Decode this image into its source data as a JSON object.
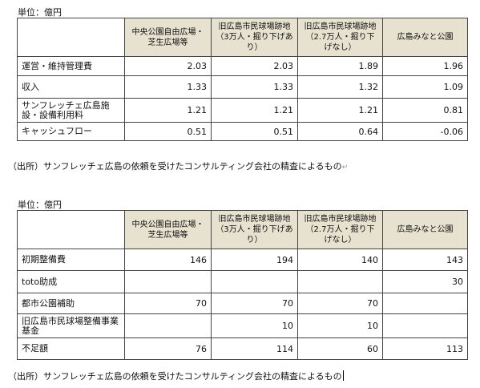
{
  "table1": {
    "unit": "単位：億円",
    "headers": [
      "中央公園自由広場・芝生広場等",
      "旧広島市民球場跡地（3万人・掘り下げあり）",
      "旧広島市民球場跡地（2.7万人・掘り下げなし）",
      "広島みなと公園"
    ],
    "rows": [
      {
        "label": "運営・維持管理費",
        "values": [
          "2.03",
          "2.03",
          "1.89",
          "1.96"
        ]
      },
      {
        "label": "収入",
        "values": [
          "1.33",
          "1.33",
          "1.32",
          "1.09"
        ]
      },
      {
        "label": "サンフレッチェ広島施設・設備利用料",
        "values": [
          "1.21",
          "1.21",
          "1.21",
          "0.81"
        ]
      },
      {
        "label": "キャッシュフロー",
        "values": [
          "0.51",
          "0.51",
          "0.64",
          "-0.06"
        ]
      }
    ],
    "source": "（出所）サンフレッチェ広島の依頼を受けたコンサルティング会社の精査によるもの"
  },
  "table2": {
    "unit": "単位：億円",
    "headers": [
      "中央公園自由広場・芝生広場等",
      "旧広島市民球場跡地（3万人・掘り下げあり）",
      "旧広島市民球場跡地（2.7万人・掘り下げなし）",
      "広島みなと公園"
    ],
    "rows": [
      {
        "label": "初期整備費",
        "values": [
          "146",
          "194",
          "140",
          "143"
        ]
      },
      {
        "label": "toto助成",
        "values": [
          "",
          "",
          "",
          "30"
        ]
      },
      {
        "label": "都市公園補助",
        "values": [
          "70",
          "70",
          "70",
          ""
        ]
      },
      {
        "label": "旧広島市民球場整備事業基金",
        "values": [
          "",
          "10",
          "10",
          ""
        ]
      },
      {
        "label": "不足額",
        "values": [
          "76",
          "114",
          "60",
          "113"
        ]
      }
    ],
    "source": "（出所）サンフレッチェ広島の依頼を受けたコンサルティング会社の精査によるもの"
  },
  "return_mark": "↵"
}
